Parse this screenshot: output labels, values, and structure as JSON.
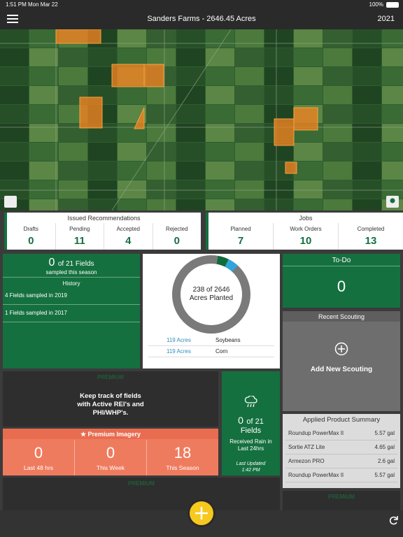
{
  "status": {
    "time": "1:51 PM",
    "date": "Mon Mar 22",
    "battery": "100%"
  },
  "header": {
    "title": "Sanders Farms - 2646.45 Acres",
    "year": "2021"
  },
  "recommendations": {
    "title": "Issued Recommendations",
    "items": [
      {
        "label": "Drafts",
        "value": 0
      },
      {
        "label": "Pending",
        "value": 11
      },
      {
        "label": "Accepted",
        "value": 4
      },
      {
        "label": "Rejected",
        "value": 0
      }
    ]
  },
  "jobs": {
    "title": "Jobs",
    "items": [
      {
        "label": "Planned",
        "value": 7
      },
      {
        "label": "Work Orders",
        "value": 10
      },
      {
        "label": "Completed",
        "value": 13
      }
    ]
  },
  "samples": {
    "count": 0,
    "of": "of 21 Fields",
    "subtitle": "sampled this season",
    "history_title": "History",
    "history": [
      "4 Fields sampled in 2019",
      "1 Fields sampled in 2017"
    ]
  },
  "planting": {
    "planted": 238,
    "of": "of",
    "total": 2646,
    "label": "Acres Planted",
    "crops": [
      {
        "value": 119,
        "unit": "Acres",
        "name": "Soybeans",
        "color": "#0f6b3a"
      },
      {
        "value": 119,
        "unit": "Acres",
        "name": "Corn",
        "color": "#2ea6dc"
      }
    ]
  },
  "todo": {
    "title": "To-Do",
    "value": 0
  },
  "scouting": {
    "title": "Recent Scouting",
    "action": "Add New Scouting"
  },
  "premium_fields": {
    "badge": "PREMIUM",
    "text": "Keep track of fields with Active REI's and PHI/WHP's."
  },
  "imagery": {
    "title": "Premium Imagery",
    "items": [
      {
        "value": 0,
        "label": "Last 48 hrs"
      },
      {
        "value": 0,
        "label": "This Week"
      },
      {
        "value": 18,
        "label": "This Season"
      }
    ]
  },
  "rain": {
    "count": 0,
    "of": "of 21",
    "unit": "Fields",
    "text": "Received Rain in Last 24hrs",
    "updated": "Last Updated",
    "time": "1:42 PM"
  },
  "products": {
    "title": "Applied Product Summary",
    "rows": [
      [
        "Roundup PowerMax II",
        "5.57 gal"
      ],
      [
        "Sortie ATZ Lite",
        "4.65 gal"
      ],
      [
        "Armezon PRO",
        "2.6 gal"
      ],
      [
        "Roundup PowerMax II",
        "5.57 gal"
      ]
    ]
  },
  "premium_bottom_left": "PREMIUM",
  "premium_bottom_right": "PREMIUM"
}
